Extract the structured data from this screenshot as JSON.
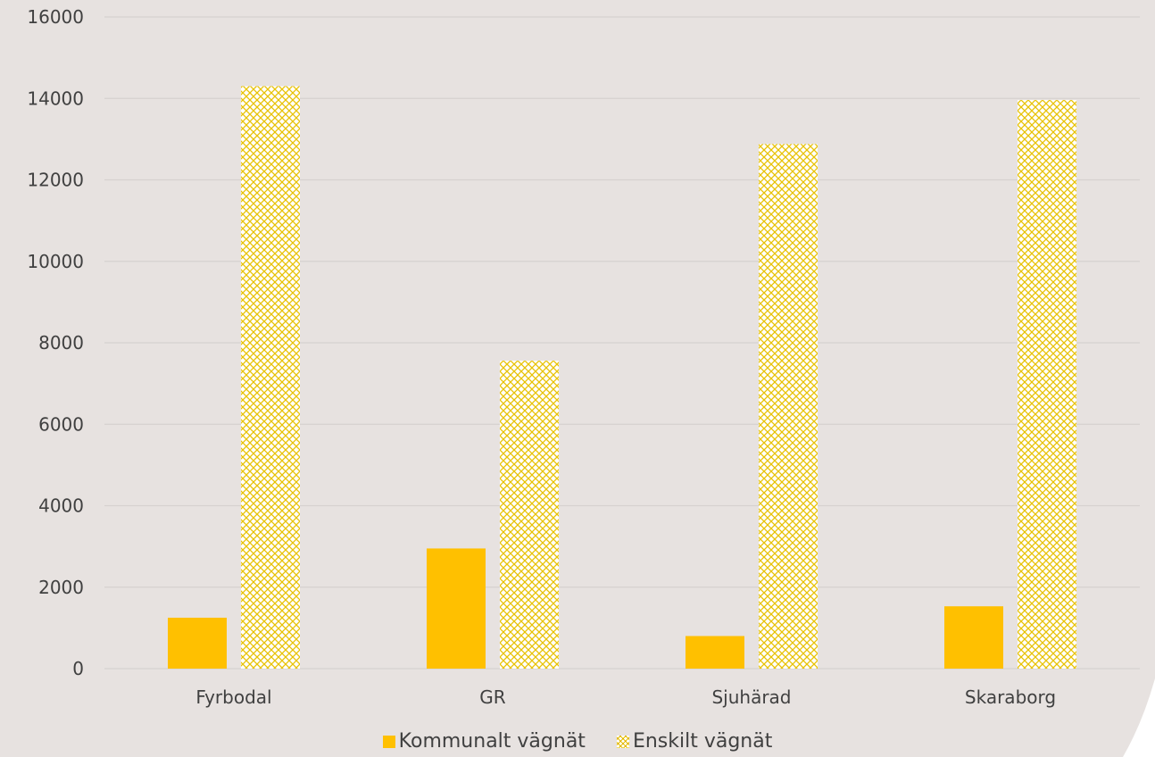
{
  "colors": {
    "background": "#e7e2e0",
    "gridline": "#d6d1cf",
    "kommunalt": "#ffc000",
    "enskilt_pattern": "#e8c200",
    "enskilt_fill": "#ffffff",
    "text": "#404040"
  },
  "chart_data": {
    "type": "bar",
    "title": "",
    "xlabel": "",
    "ylabel": "",
    "categories": [
      "Fyrbodal",
      "GR",
      "Sjuhärad",
      "Skaraborg"
    ],
    "ylim": [
      0,
      16000
    ],
    "yticks": [
      "0",
      "2000",
      "4000",
      "6000",
      "8000",
      "10000",
      "12000",
      "14000",
      "16000"
    ],
    "grid": true,
    "legend_position": "bottom",
    "series": [
      {
        "name": "Kommunalt vägnät",
        "values": [
          1250,
          2950,
          800,
          1530
        ],
        "style": "solid"
      },
      {
        "name": "Enskilt vägnät",
        "values": [
          14300,
          7560,
          12880,
          13960
        ],
        "style": "crosshatch"
      }
    ]
  }
}
